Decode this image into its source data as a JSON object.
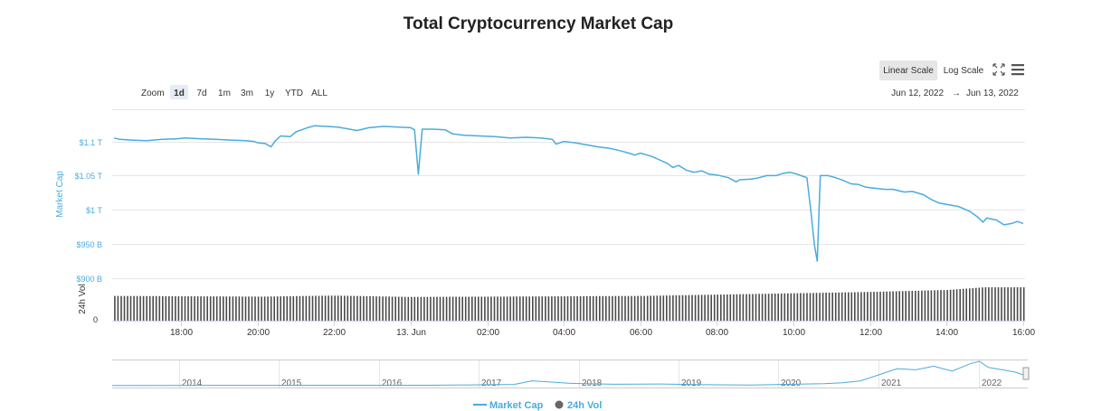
{
  "chart_data": {
    "type": "line",
    "title": "Total Cryptocurrency Market Cap",
    "subtitle": "",
    "ylabel": "Market Cap",
    "vol_label": "24h Vol",
    "zoom": {
      "label": "Zoom",
      "options": [
        "1d",
        "7d",
        "1m",
        "3m",
        "1y",
        "YTD",
        "ALL"
      ],
      "selected": "1d"
    },
    "scale_buttons": {
      "linear": "Linear Scale",
      "log": "Log Scale",
      "selected": "Linear Scale"
    },
    "date_range": {
      "from": "Jun 12, 2022",
      "arrow": "→",
      "to": "Jun 13, 2022"
    },
    "y_ticks": [
      {
        "value": 1.1,
        "label": "$1.1 T"
      },
      {
        "value": 1.05,
        "label": "$1.05 T"
      },
      {
        "value": 1.0,
        "label": "$1 T"
      },
      {
        "value": 0.95,
        "label": "$950 B"
      },
      {
        "value": 0.9,
        "label": "$900 B"
      }
    ],
    "ylim": [
      0.9,
      1.147
    ],
    "y_unit": "T USD",
    "vol_tick": "0",
    "x_range_hours": [
      16.2,
      40.05
    ],
    "x_ticks": [
      {
        "hour": 18,
        "label": "18:00"
      },
      {
        "hour": 20,
        "label": "20:00"
      },
      {
        "hour": 22,
        "label": "22:00"
      },
      {
        "hour": 24,
        "label": "13. Jun"
      },
      {
        "hour": 26,
        "label": "02:00"
      },
      {
        "hour": 28,
        "label": "04:00"
      },
      {
        "hour": 30,
        "label": "06:00"
      },
      {
        "hour": 32,
        "label": "08:00"
      },
      {
        "hour": 34,
        "label": "10:00"
      },
      {
        "hour": 36,
        "label": "12:00"
      },
      {
        "hour": 38,
        "label": "14:00"
      },
      {
        "hour": 40,
        "label": "16:00"
      }
    ],
    "series": [
      {
        "name": "Market Cap",
        "color": "#4aabdf",
        "points": [
          [
            16.25,
            1.105
          ],
          [
            16.4,
            1.103
          ],
          [
            16.7,
            1.102
          ],
          [
            17.1,
            1.101
          ],
          [
            17.5,
            1.103
          ],
          [
            17.9,
            1.104
          ],
          [
            18.1,
            1.105
          ],
          [
            18.5,
            1.104
          ],
          [
            18.9,
            1.103
          ],
          [
            19.3,
            1.102
          ],
          [
            19.7,
            1.101
          ],
          [
            19.9,
            1.1
          ],
          [
            20.0,
            1.098
          ],
          [
            20.2,
            1.097
          ],
          [
            20.35,
            1.092
          ],
          [
            20.45,
            1.1
          ],
          [
            20.6,
            1.108
          ],
          [
            20.85,
            1.107
          ],
          [
            21.0,
            1.114
          ],
          [
            21.3,
            1.12
          ],
          [
            21.5,
            1.123
          ],
          [
            21.8,
            1.122
          ],
          [
            22.1,
            1.121
          ],
          [
            22.4,
            1.118
          ],
          [
            22.6,
            1.116
          ],
          [
            22.9,
            1.12
          ],
          [
            23.3,
            1.122
          ],
          [
            23.7,
            1.121
          ],
          [
            24.0,
            1.12
          ],
          [
            24.1,
            1.117
          ],
          [
            24.2,
            1.052
          ],
          [
            24.3,
            1.118
          ],
          [
            24.6,
            1.118
          ],
          [
            24.9,
            1.117
          ],
          [
            25.1,
            1.111
          ],
          [
            25.4,
            1.109
          ],
          [
            25.8,
            1.108
          ],
          [
            26.2,
            1.107
          ],
          [
            26.6,
            1.105
          ],
          [
            27.0,
            1.106
          ],
          [
            27.4,
            1.105
          ],
          [
            27.7,
            1.103
          ],
          [
            27.8,
            1.096
          ],
          [
            28.0,
            1.1
          ],
          [
            28.3,
            1.098
          ],
          [
            28.6,
            1.095
          ],
          [
            28.9,
            1.092
          ],
          [
            29.2,
            1.09
          ],
          [
            29.5,
            1.086
          ],
          [
            29.7,
            1.083
          ],
          [
            29.85,
            1.08
          ],
          [
            30.0,
            1.083
          ],
          [
            30.3,
            1.078
          ],
          [
            30.5,
            1.073
          ],
          [
            30.7,
            1.068
          ],
          [
            30.85,
            1.062
          ],
          [
            31.0,
            1.065
          ],
          [
            31.2,
            1.058
          ],
          [
            31.4,
            1.055
          ],
          [
            31.6,
            1.057
          ],
          [
            31.8,
            1.052
          ],
          [
            32.0,
            1.051
          ],
          [
            32.3,
            1.047
          ],
          [
            32.5,
            1.041
          ],
          [
            32.6,
            1.044
          ],
          [
            32.9,
            1.045
          ],
          [
            33.1,
            1.047
          ],
          [
            33.3,
            1.05
          ],
          [
            33.55,
            1.05
          ],
          [
            33.7,
            1.053
          ],
          [
            33.9,
            1.055
          ],
          [
            34.1,
            1.052
          ],
          [
            34.35,
            1.047
          ],
          [
            34.45,
            1.0
          ],
          [
            34.55,
            0.948
          ],
          [
            34.62,
            0.925
          ],
          [
            34.7,
            1.05
          ],
          [
            34.9,
            1.05
          ],
          [
            35.1,
            1.047
          ],
          [
            35.3,
            1.043
          ],
          [
            35.5,
            1.038
          ],
          [
            35.7,
            1.037
          ],
          [
            35.9,
            1.033
          ],
          [
            36.2,
            1.031
          ],
          [
            36.4,
            1.03
          ],
          [
            36.6,
            1.03
          ],
          [
            36.9,
            1.026
          ],
          [
            37.1,
            1.027
          ],
          [
            37.4,
            1.022
          ],
          [
            37.6,
            1.015
          ],
          [
            37.8,
            1.01
          ],
          [
            38.0,
            1.008
          ],
          [
            38.3,
            1.005
          ],
          [
            38.6,
            0.998
          ],
          [
            38.8,
            0.99
          ],
          [
            38.95,
            0.982
          ],
          [
            39.05,
            0.988
          ],
          [
            39.3,
            0.985
          ],
          [
            39.5,
            0.978
          ],
          [
            39.7,
            0.98
          ],
          [
            39.85,
            0.983
          ],
          [
            40.0,
            0.98
          ]
        ]
      },
      {
        "name": "24h Vol",
        "color": "#4a4a4a",
        "relative_levels": [
          [
            16.25,
            0.74
          ],
          [
            20.1,
            0.72
          ],
          [
            22.0,
            0.75
          ],
          [
            24.0,
            0.71
          ],
          [
            30.0,
            0.74
          ],
          [
            33.0,
            0.8
          ],
          [
            36.0,
            0.86
          ],
          [
            38.0,
            0.92
          ],
          [
            39.0,
            1.0
          ],
          [
            40.0,
            1.0
          ]
        ]
      }
    ],
    "navigator": {
      "years": [
        "2014",
        "2015",
        "2016",
        "2017",
        "2018",
        "2019",
        "2020",
        "2021",
        "2022"
      ],
      "color": "#4aabdf",
      "relative_series": [
        [
          0.0,
          0.01
        ],
        [
          0.35,
          0.02
        ],
        [
          0.44,
          0.05
        ],
        [
          0.46,
          0.2
        ],
        [
          0.48,
          0.15
        ],
        [
          0.5,
          0.1
        ],
        [
          0.55,
          0.06
        ],
        [
          0.6,
          0.07
        ],
        [
          0.65,
          0.04
        ],
        [
          0.7,
          0.03
        ],
        [
          0.78,
          0.08
        ],
        [
          0.8,
          0.12
        ],
        [
          0.82,
          0.2
        ],
        [
          0.84,
          0.45
        ],
        [
          0.86,
          0.7
        ],
        [
          0.88,
          0.65
        ],
        [
          0.9,
          0.8
        ],
        [
          0.92,
          0.6
        ],
        [
          0.94,
          0.9
        ],
        [
          0.95,
          1.0
        ],
        [
          0.96,
          0.75
        ],
        [
          0.975,
          0.65
        ],
        [
          0.99,
          0.55
        ],
        [
          1.0,
          0.42
        ]
      ]
    },
    "legend": {
      "items": [
        {
          "label": "Market Cap",
          "color": "#4aabdf",
          "symbol": "line"
        },
        {
          "label": "24h Vol",
          "color": "#666666",
          "symbol": "dot"
        }
      ]
    }
  }
}
